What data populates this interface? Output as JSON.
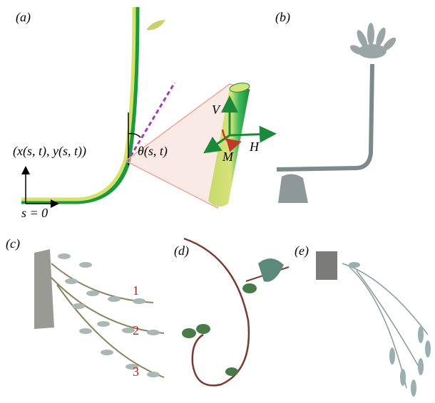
{
  "panels": [
    {
      "label": "(a)",
      "annotations": {
        "position": "(x(s, t), y(s, t))",
        "angle": "θ(s, t)",
        "origin": "s = 0",
        "vertical_force": "V",
        "horizontal_force": "H",
        "moment": "M"
      }
    },
    {
      "label": "(b)"
    },
    {
      "label": "(c)",
      "branch_numbers": [
        "1",
        "2",
        "3"
      ]
    },
    {
      "label": "(d)"
    },
    {
      "label": "(e)"
    }
  ]
}
